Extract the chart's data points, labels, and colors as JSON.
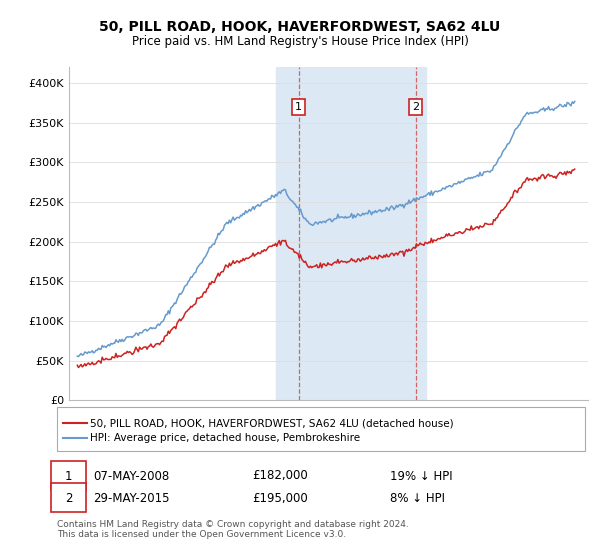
{
  "title": "50, PILL ROAD, HOOK, HAVERFORDWEST, SA62 4LU",
  "subtitle": "Price paid vs. HM Land Registry's House Price Index (HPI)",
  "hpi_color": "#6699cc",
  "price_color": "#cc2222",
  "highlight_bg": "#dce9f5",
  "annotation1": {
    "label": "1",
    "date": "07-MAY-2008",
    "price": "£182,000",
    "pct": "19% ↓ HPI",
    "x_year": 2008.35
  },
  "annotation2": {
    "label": "2",
    "date": "29-MAY-2015",
    "price": "£195,000",
    "pct": "8% ↓ HPI",
    "x_year": 2015.4
  },
  "legend_line1": "50, PILL ROAD, HOOK, HAVERFORDWEST, SA62 4LU (detached house)",
  "legend_line2": "HPI: Average price, detached house, Pembrokeshire",
  "footer": "Contains HM Land Registry data © Crown copyright and database right 2024.\nThis data is licensed under the Open Government Licence v3.0.",
  "ylim": [
    0,
    420000
  ],
  "yticks": [
    0,
    50000,
    100000,
    150000,
    200000,
    250000,
    300000,
    350000,
    400000
  ],
  "ytick_labels": [
    "£0",
    "£50K",
    "£100K",
    "£150K",
    "£200K",
    "£250K",
    "£300K",
    "£350K",
    "£400K"
  ],
  "highlight_x_start": 2007.0,
  "highlight_x_end": 2016.0,
  "xlim_left": 1994.5,
  "xlim_right": 2025.8
}
